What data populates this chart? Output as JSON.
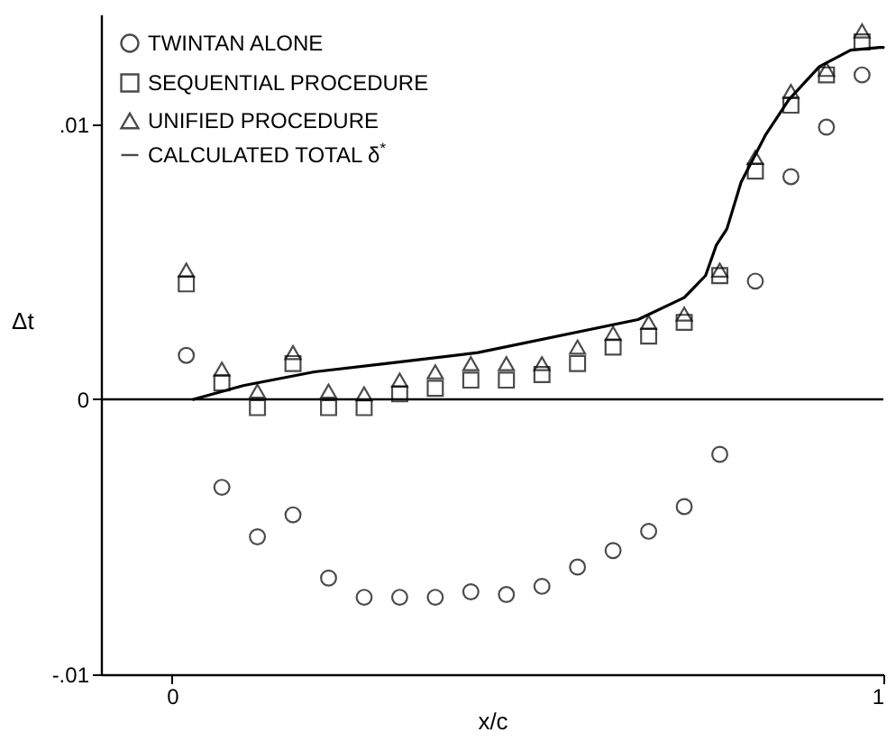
{
  "chart_data": {
    "type": "scatter",
    "xlabel": "x/c",
    "ylabel": "Δt",
    "x": [
      0.02,
      0.07,
      0.12,
      0.17,
      0.22,
      0.27,
      0.32,
      0.37,
      0.42,
      0.47,
      0.52,
      0.57,
      0.62,
      0.67,
      0.72,
      0.77,
      0.82,
      0.87,
      0.92,
      0.97
    ],
    "series": [
      {
        "name": "TWINTAN ALONE",
        "marker": "circle",
        "color": "#000000",
        "values": [
          0.0016,
          -0.0032,
          -0.005,
          -0.0042,
          -0.0065,
          -0.0072,
          -0.0072,
          -0.0072,
          -0.007,
          -0.0071,
          -0.0068,
          -0.0061,
          -0.0055,
          -0.0048,
          -0.0039,
          -0.002,
          0.0043,
          0.0081,
          0.0099,
          0.0118
        ]
      },
      {
        "name": "SEQUENTIAL PROCEDURE",
        "marker": "square",
        "color": "#000000",
        "values": [
          0.0042,
          0.0006,
          -0.0003,
          0.0013,
          -0.0003,
          -0.0003,
          0.0002,
          0.0004,
          0.0007,
          0.0007,
          0.0009,
          0.0013,
          0.0019,
          0.0023,
          0.0028,
          0.0045,
          0.0083,
          0.0107,
          0.0118,
          0.013
        ]
      },
      {
        "name": "UNIFIED PROCEDURE",
        "marker": "triangle",
        "color": "#000000",
        "values": [
          0.0047,
          0.0011,
          0.0003,
          0.0017,
          0.0003,
          0.0002,
          0.0007,
          0.001,
          0.0013,
          0.0013,
          0.0013,
          0.0019,
          0.0024,
          0.0028,
          0.0031,
          0.0047,
          0.0088,
          0.0112,
          0.012,
          0.0134
        ]
      },
      {
        "name": "CALCULATED TOTAL δ$^{*}$",
        "type": "line",
        "marker": "none",
        "line_style": "solid",
        "color": "#000000",
        "x": [
          0.03,
          0.1,
          0.2,
          0.3,
          0.43,
          0.655,
          0.72,
          0.75,
          0.765,
          0.78,
          0.8,
          0.834,
          0.867,
          0.91,
          0.954,
          0.995,
          1.0
        ],
        "values": [
          0,
          0.0005,
          0.001,
          0.0013,
          0.0017,
          0.0029,
          0.0037,
          0.0045,
          0.0056,
          0.0062,
          0.0079,
          0.0096,
          0.0109,
          0.0121,
          0.0127,
          0.0128,
          0.0128
        ]
      }
    ],
    "xlim": [
      -0.1,
      1.0
    ],
    "xticks": [
      0,
      1
    ],
    "ylim": [
      -0.01,
      0.014
    ],
    "yticks": [
      {
        "value": -0.01,
        "label": "-.01"
      },
      0,
      {
        "value": 0.01,
        "label": ".01"
      }
    ],
    "ref_lines": [
      {
        "axis": "y",
        "value": 0,
        "color": "#000000"
      }
    ],
    "grid": false,
    "legend": "top left"
  }
}
